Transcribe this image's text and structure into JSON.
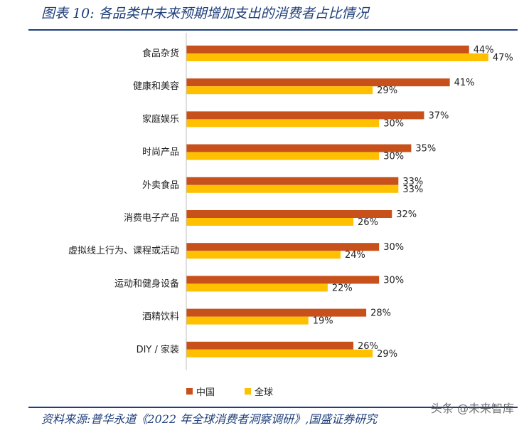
{
  "header": {
    "title": "图表 10:  各品类中未来预期增加支出的消费者占比情况"
  },
  "footer": {
    "source": "资料来源:普华永道《2022 年全球消费者洞察调研》,国盛证券研究",
    "watermark": "头条 @未来智库"
  },
  "chart_data": {
    "type": "bar",
    "orientation": "horizontal",
    "categories": [
      "食品杂货",
      "健康和美容",
      "家庭娱乐",
      "时尚产品",
      "外卖食品",
      "消费电子产品",
      "虚拟线上行为、课程或活动",
      "运动和健身设备",
      "酒精饮料",
      "DIY / 家装"
    ],
    "series": [
      {
        "name": "中国",
        "color": "#c8501a",
        "values": [
          44,
          41,
          37,
          35,
          33,
          32,
          30,
          30,
          28,
          26
        ]
      },
      {
        "name": "全球",
        "color": "#ffc000",
        "values": [
          47,
          29,
          30,
          30,
          33,
          26,
          24,
          22,
          19,
          29
        ]
      }
    ],
    "value_suffix": "%",
    "xlim": [
      0,
      50
    ],
    "legend_position": "bottom-left",
    "grid": false
  }
}
